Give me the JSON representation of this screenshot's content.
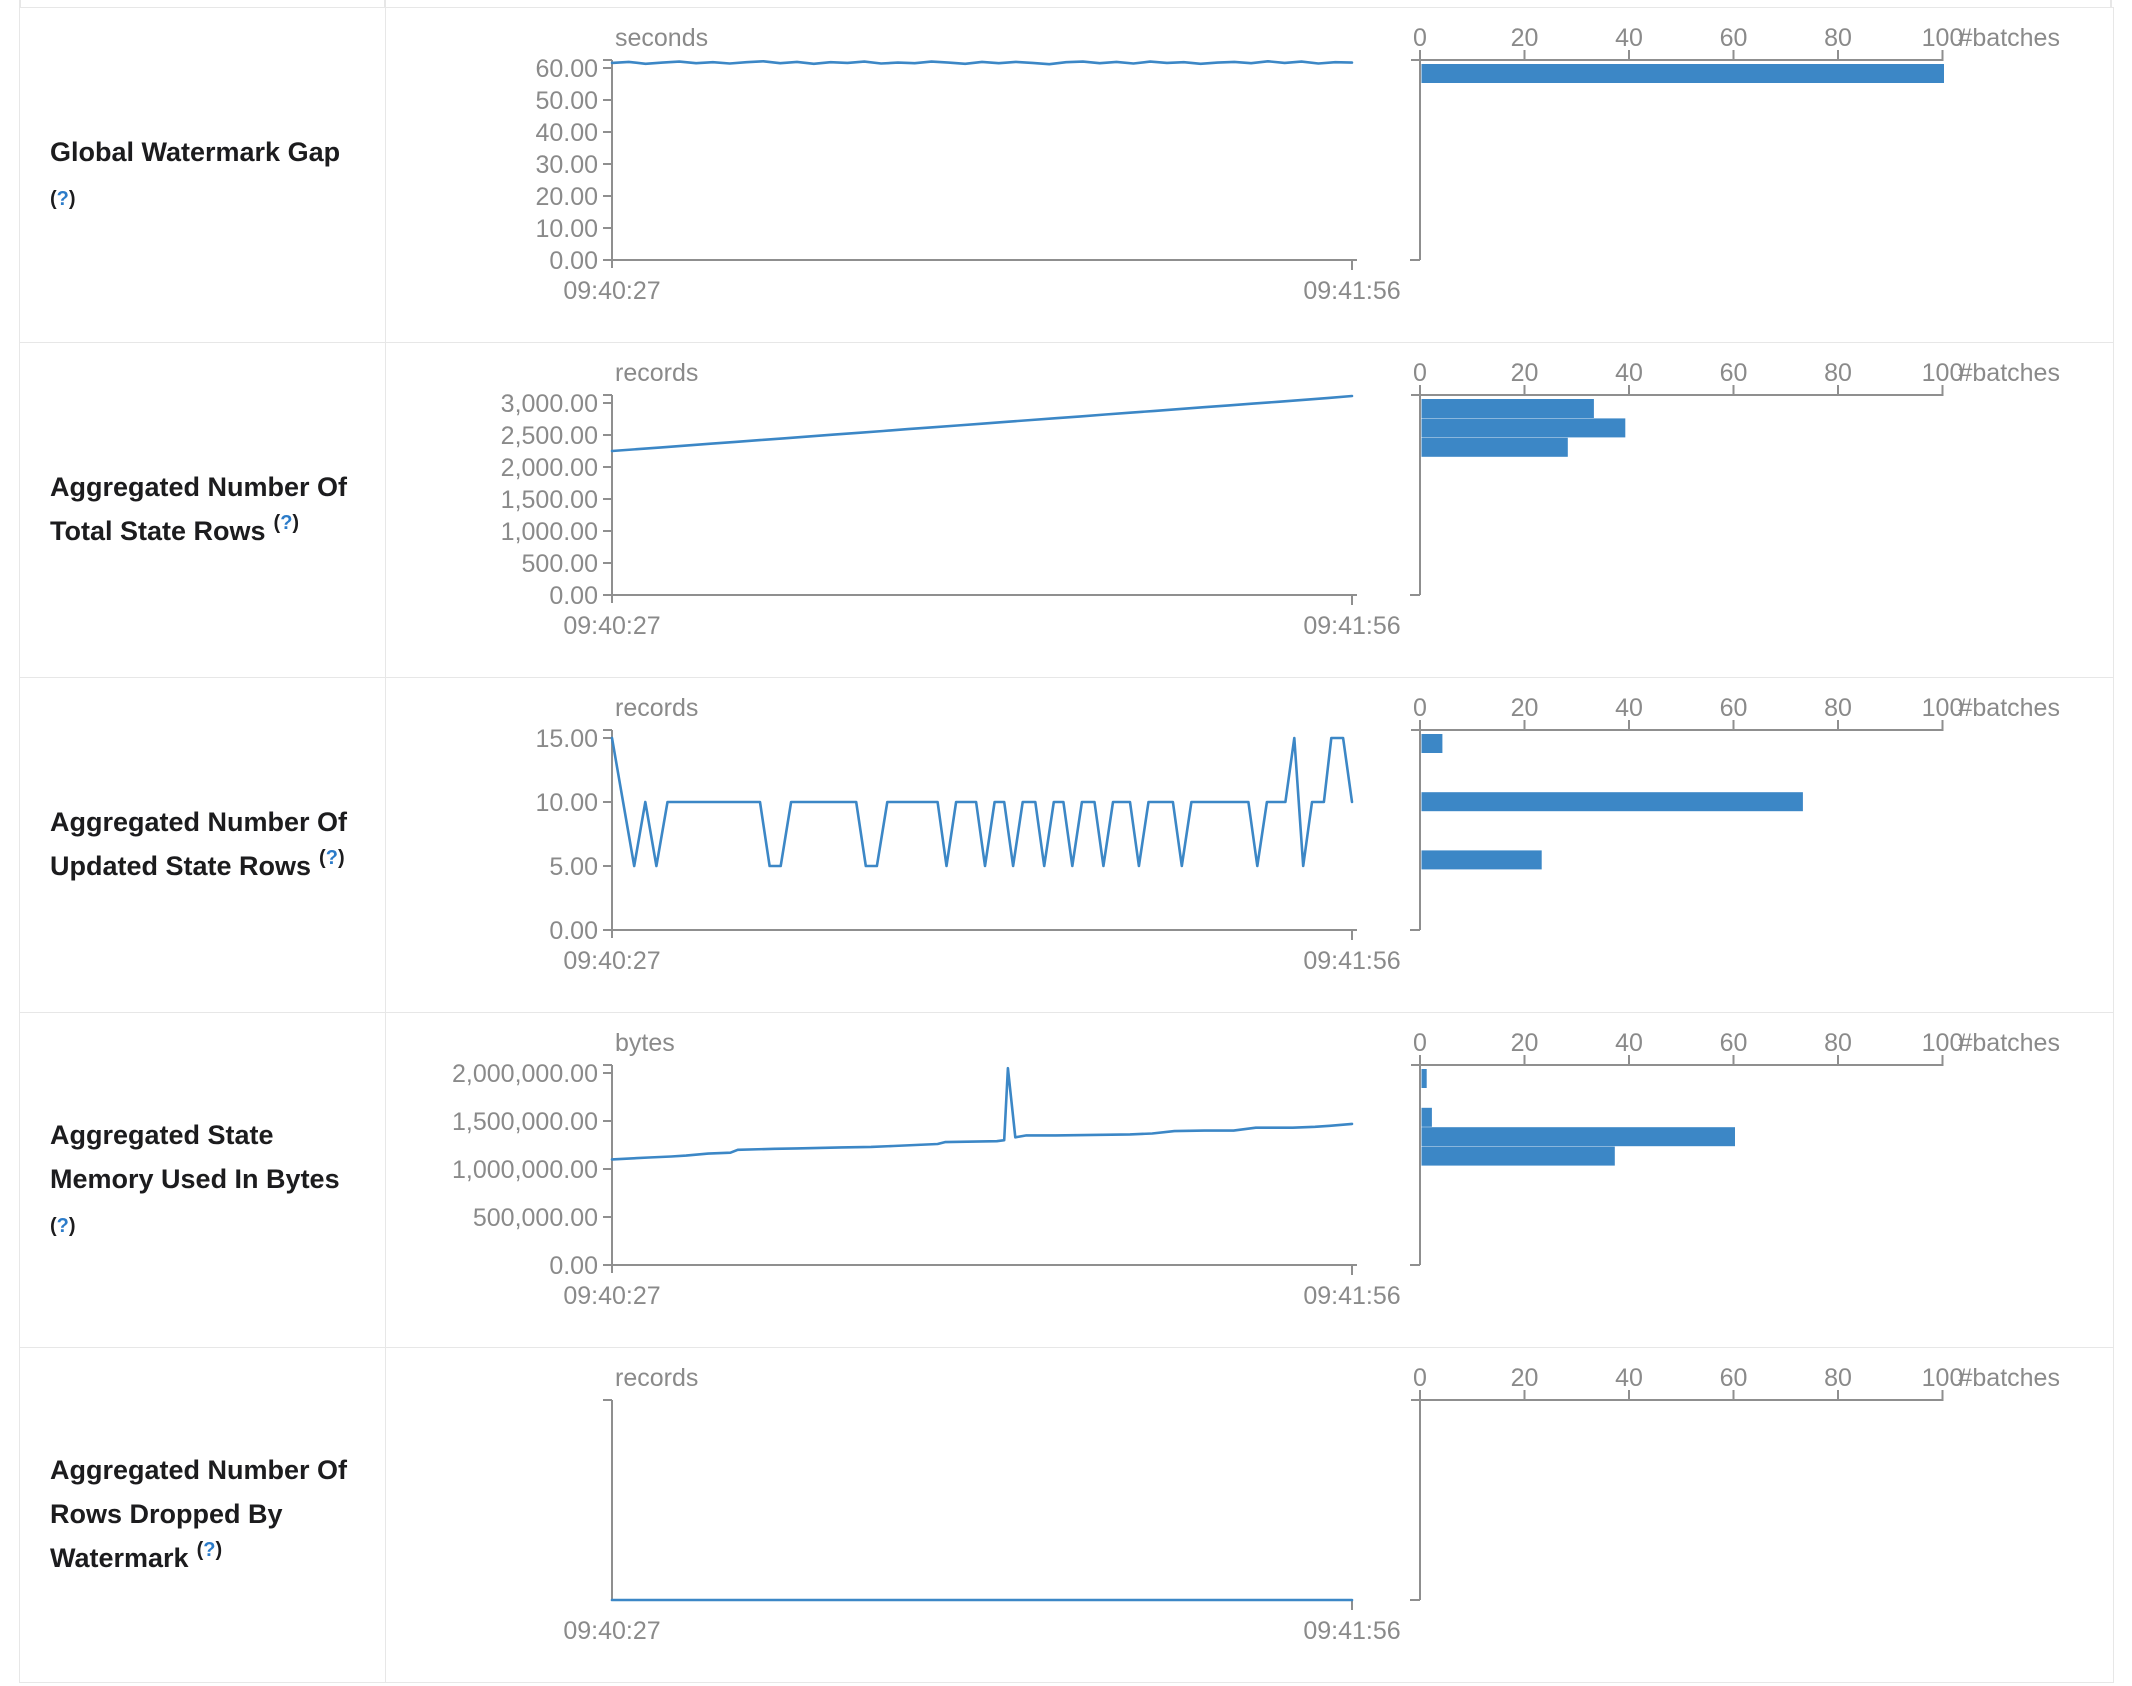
{
  "page": {
    "app": "spark-structured-streaming-statistics"
  },
  "colors": {
    "accent_blue": "#3c87c6",
    "axis_gray": "#8f8f8f",
    "tick_text_gray": "#8a8a8a",
    "border_gray": "#e7e7e7",
    "label_text": "#1c1c1e",
    "help_blue": "#2b7bc9"
  },
  "help": {
    "open": "(",
    "q": "?",
    "close": ")"
  },
  "timeline_axis": {
    "start": "09:40:27",
    "end": "09:41:56"
  },
  "hist_axis": {
    "tick_labels": [
      "0",
      "20",
      "40",
      "60",
      "80",
      "100"
    ],
    "unit": "#batches",
    "max": 100
  },
  "rows": [
    {
      "label": "Global Watermark Gap",
      "label_lines": [
        "Global Watermark Gap"
      ],
      "help_inline": false
    },
    {
      "label": "Aggregated Number Of Total State Rows",
      "label_lines": [
        "Aggregated Number Of",
        "Total State Rows"
      ],
      "help_inline": true
    },
    {
      "label": "Aggregated Number Of Updated State Rows",
      "label_lines": [
        "Aggregated Number Of",
        "Updated State Rows"
      ],
      "help_inline": true
    },
    {
      "label": "Aggregated State Memory Used In Bytes",
      "label_lines": [
        "Aggregated State",
        "Memory Used In Bytes"
      ],
      "help_inline": false
    },
    {
      "label": "Aggregated Number Of Rows Dropped By Watermark",
      "label_lines": [
        "Aggregated Number Of",
        "Rows Dropped By",
        "Watermark"
      ],
      "help_inline": true
    }
  ],
  "chart_data": [
    {
      "name": "global-watermark-gap",
      "type": "line",
      "unit": "seconds",
      "x_range": [
        "09:40:27",
        "09:41:56"
      ],
      "ylim": [
        0,
        62.5
      ],
      "yticks": [
        60,
        50,
        40,
        30,
        20,
        10,
        0
      ],
      "ytick_labels": [
        "60.00",
        "50.00",
        "40.00",
        "30.00",
        "20.00",
        "10.00",
        "0.00"
      ],
      "series": [
        {
          "name": "watermark-gap-seconds",
          "values": [
            61.6,
            61.9,
            61.3,
            61.7,
            62.0,
            61.5,
            61.8,
            61.4,
            61.8,
            62.1,
            61.5,
            61.9,
            61.3,
            61.8,
            61.6,
            62.0,
            61.4,
            61.7,
            61.5,
            62.0,
            61.7,
            61.3,
            61.9,
            61.5,
            61.9,
            61.6,
            61.2,
            61.8,
            62.0,
            61.5,
            61.9,
            61.4,
            62.0,
            61.6,
            61.8,
            61.3,
            61.7,
            61.9,
            61.5,
            62.1,
            61.6,
            62.0,
            61.4,
            61.8,
            61.7
          ]
        }
      ],
      "histogram": {
        "type": "bar",
        "orientation": "horizontal",
        "unit": "#batches",
        "xlim": [
          0,
          100
        ],
        "xticks": [
          0,
          20,
          40,
          60,
          80,
          100
        ],
        "bars": [
          {
            "slot": 0,
            "count": 100
          }
        ]
      }
    },
    {
      "name": "aggregated-number-of-total-state-rows",
      "type": "line",
      "unit": "records",
      "x_range": [
        "09:40:27",
        "09:41:56"
      ],
      "ylim": [
        0,
        3125
      ],
      "yticks": [
        3000,
        2500,
        2000,
        1500,
        1000,
        500,
        0
      ],
      "ytick_labels": [
        "3,000.00",
        "2,500.00",
        "2,000.00",
        "1,500.00",
        "1,000.00",
        "500.00",
        "0.00"
      ],
      "series": [
        {
          "name": "total-state-rows",
          "values": [
            2250,
            2278,
            2307,
            2335,
            2364,
            2392,
            2421,
            2449,
            2478,
            2506,
            2535,
            2563,
            2592,
            2620,
            2649,
            2677,
            2706,
            2734,
            2763,
            2791,
            2820,
            2848,
            2877,
            2905,
            2934,
            2962,
            2991,
            3019,
            3048,
            3076,
            3110
          ]
        }
      ],
      "histogram": {
        "type": "bar",
        "orientation": "horizontal",
        "unit": "#batches",
        "xlim": [
          0,
          100
        ],
        "xticks": [
          0,
          20,
          40,
          60,
          80,
          100
        ],
        "bars": [
          {
            "slot": 0,
            "count": 33
          },
          {
            "slot": 1,
            "count": 39
          },
          {
            "slot": 2,
            "count": 28
          }
        ]
      }
    },
    {
      "name": "aggregated-number-of-updated-state-rows",
      "type": "line",
      "unit": "records",
      "x_range": [
        "09:40:27",
        "09:41:56"
      ],
      "ylim": [
        0,
        15.6
      ],
      "yticks": [
        15,
        10,
        5,
        0
      ],
      "ytick_labels": [
        "15.00",
        "10.00",
        "5.00",
        "0.00"
      ],
      "series": [
        {
          "name": "updated-state-rows",
          "points": [
            [
              0.0,
              15
            ],
            [
              0.03,
              5
            ],
            [
              0.045,
              10
            ],
            [
              0.06,
              5
            ],
            [
              0.075,
              10
            ],
            [
              0.2,
              10
            ],
            [
              0.213,
              5
            ],
            [
              0.228,
              5
            ],
            [
              0.242,
              10
            ],
            [
              0.33,
              10
            ],
            [
              0.343,
              5
            ],
            [
              0.358,
              5
            ],
            [
              0.372,
              10
            ],
            [
              0.44,
              10
            ],
            [
              0.452,
              5
            ],
            [
              0.465,
              10
            ],
            [
              0.492,
              10
            ],
            [
              0.504,
              5
            ],
            [
              0.517,
              10
            ],
            [
              0.53,
              10
            ],
            [
              0.542,
              5
            ],
            [
              0.555,
              10
            ],
            [
              0.572,
              10
            ],
            [
              0.584,
              5
            ],
            [
              0.597,
              10
            ],
            [
              0.61,
              10
            ],
            [
              0.622,
              5
            ],
            [
              0.635,
              10
            ],
            [
              0.652,
              10
            ],
            [
              0.664,
              5
            ],
            [
              0.677,
              10
            ],
            [
              0.7,
              10
            ],
            [
              0.712,
              5
            ],
            [
              0.725,
              10
            ],
            [
              0.758,
              10
            ],
            [
              0.77,
              5
            ],
            [
              0.783,
              10
            ],
            [
              0.86,
              10
            ],
            [
              0.872,
              5
            ],
            [
              0.885,
              10
            ],
            [
              0.91,
              10
            ],
            [
              0.922,
              15
            ],
            [
              0.934,
              5
            ],
            [
              0.946,
              10
            ],
            [
              0.962,
              10
            ],
            [
              0.972,
              15
            ],
            [
              0.988,
              15
            ],
            [
              1.0,
              10
            ]
          ]
        }
      ],
      "histogram": {
        "type": "bar",
        "orientation": "horizontal",
        "unit": "#batches",
        "xlim": [
          0,
          100
        ],
        "xticks": [
          0,
          20,
          40,
          60,
          80,
          100
        ],
        "bars": [
          {
            "slot": 0,
            "count": 4
          },
          {
            "slot": 3,
            "count": 73
          },
          {
            "slot": 6,
            "count": 23
          }
        ]
      }
    },
    {
      "name": "aggregated-state-memory-used-in-bytes",
      "type": "line",
      "unit": "bytes",
      "x_range": [
        "09:40:27",
        "09:41:56"
      ],
      "ylim": [
        0,
        2083000
      ],
      "yticks": [
        2000000,
        1500000,
        1000000,
        500000,
        0
      ],
      "ytick_labels": [
        "2,000,000.00",
        "1,500,000.00",
        "1,000,000.00",
        "500,000.00",
        "0.00"
      ],
      "series": [
        {
          "name": "state-memory-bytes",
          "points": [
            [
              0.0,
              1100000
            ],
            [
              0.05,
              1120000
            ],
            [
              0.08,
              1130000
            ],
            [
              0.1,
              1140000
            ],
            [
              0.13,
              1160000
            ],
            [
              0.16,
              1170000
            ],
            [
              0.17,
              1200000
            ],
            [
              0.22,
              1210000
            ],
            [
              0.25,
              1215000
            ],
            [
              0.28,
              1220000
            ],
            [
              0.31,
              1225000
            ],
            [
              0.35,
              1230000
            ],
            [
              0.38,
              1240000
            ],
            [
              0.41,
              1250000
            ],
            [
              0.44,
              1260000
            ],
            [
              0.45,
              1280000
            ],
            [
              0.49,
              1285000
            ],
            [
              0.52,
              1290000
            ],
            [
              0.53,
              1300000
            ],
            [
              0.535,
              2050000
            ],
            [
              0.545,
              1330000
            ],
            [
              0.56,
              1350000
            ],
            [
              0.6,
              1350000
            ],
            [
              0.65,
              1355000
            ],
            [
              0.7,
              1360000
            ],
            [
              0.73,
              1370000
            ],
            [
              0.76,
              1395000
            ],
            [
              0.8,
              1400000
            ],
            [
              0.84,
              1400000
            ],
            [
              0.87,
              1430000
            ],
            [
              0.92,
              1430000
            ],
            [
              0.95,
              1440000
            ],
            [
              0.97,
              1450000
            ],
            [
              1.0,
              1470000
            ]
          ]
        }
      ],
      "histogram": {
        "type": "bar",
        "orientation": "horizontal",
        "unit": "#batches",
        "xlim": [
          0,
          100
        ],
        "xticks": [
          0,
          20,
          40,
          60,
          80,
          100
        ],
        "bars": [
          {
            "slot": 0,
            "count": 1
          },
          {
            "slot": 2,
            "count": 2
          },
          {
            "slot": 3,
            "count": 60
          },
          {
            "slot": 4,
            "count": 37
          }
        ]
      }
    },
    {
      "name": "aggregated-number-of-rows-dropped-by-watermark",
      "type": "line",
      "unit": "records",
      "x_range": [
        "09:40:27",
        "09:41:56"
      ],
      "ylim": [
        0,
        1
      ],
      "yticks": [],
      "ytick_labels": [],
      "series": [
        {
          "name": "rows-dropped-by-watermark",
          "points": [
            [
              0.0,
              0
            ],
            [
              1.0,
              0
            ]
          ]
        }
      ],
      "histogram": {
        "type": "bar",
        "orientation": "horizontal",
        "unit": "#batches",
        "xlim": [
          0,
          100
        ],
        "xticks": [
          0,
          20,
          40,
          60,
          80,
          100
        ],
        "bars": []
      }
    }
  ]
}
